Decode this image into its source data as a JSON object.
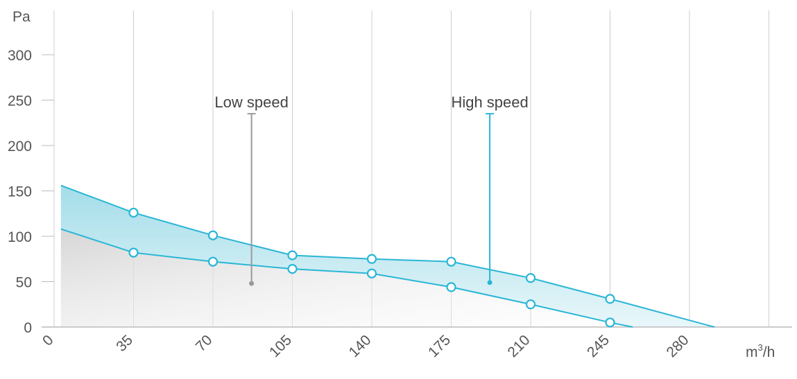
{
  "chart_data": {
    "type": "area",
    "ylabel": "Pa",
    "xlabel": "m³/h",
    "xlabel_base": "m",
    "xlabel_sup": "3",
    "xlabel_tail": "/h",
    "xticks": [
      0,
      35,
      70,
      105,
      140,
      175,
      210,
      245,
      280
    ],
    "xtick_labels": [
      "0",
      "35",
      "70",
      "105",
      "140",
      "175",
      "210",
      "245",
      "280"
    ],
    "yticks": [
      0,
      50,
      100,
      150,
      200,
      250,
      300
    ],
    "ytick_labels": [
      "0",
      "50",
      "100",
      "150",
      "200",
      "250",
      "300"
    ],
    "xlim": [
      0,
      315
    ],
    "ylim": [
      0,
      340
    ],
    "grid": "vertical",
    "series": [
      {
        "name": "High speed",
        "x": [
          3,
          35,
          70,
          105,
          140,
          175,
          210,
          245,
          291
        ],
        "y": [
          156,
          126,
          101,
          79,
          75,
          72,
          54,
          31,
          0
        ],
        "markers": [
          35,
          70,
          105,
          140,
          175,
          210,
          245
        ]
      },
      {
        "name": "Low speed",
        "x": [
          3,
          35,
          70,
          105,
          140,
          175,
          210,
          245,
          255
        ],
        "y": [
          108,
          82,
          72,
          64,
          59,
          44,
          25,
          5,
          0
        ],
        "markers": [
          35,
          70,
          105,
          140,
          175,
          210,
          245
        ]
      }
    ],
    "annotations": [
      {
        "text": "Low speed",
        "series": "Low speed",
        "label_x": 87,
        "label_y": 248,
        "line_top_y": 235,
        "point_x": 87,
        "point_y": 48
      },
      {
        "text": "High speed",
        "series": "High speed",
        "label_x": 192,
        "label_y": 248,
        "line_top_y": 235,
        "point_x": 192,
        "point_y": 49
      }
    ]
  },
  "colors": {
    "line": "#29b6d6",
    "marker_fill": "#ffffff",
    "grid": "#cccccc",
    "axis": "#bbbbbb",
    "text": "#555555",
    "low_leader": "#999999",
    "high_leader": "#29b6d6",
    "fill_high_top": "#a3dde9",
    "fill_high_bottom": "#e9f7fa",
    "fill_low_top": "#d6d6d6",
    "fill_low_bottom": "#fafafa"
  }
}
